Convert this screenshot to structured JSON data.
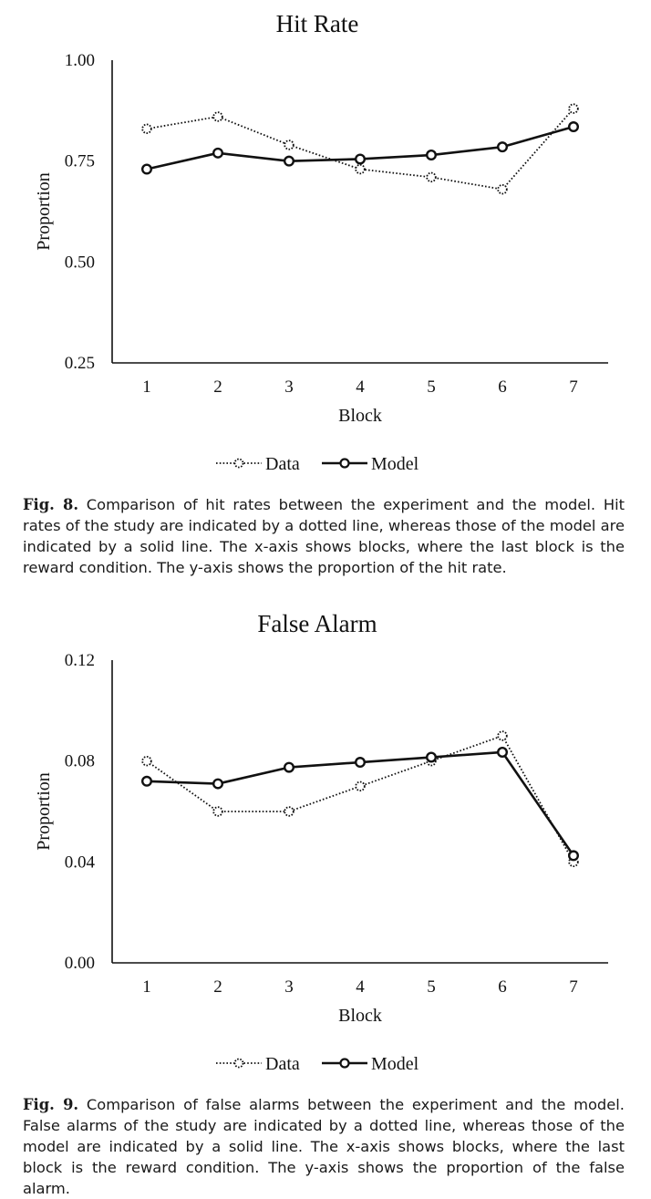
{
  "figures": [
    {
      "caption_label": "Fig. 8.",
      "caption_text": "Comparison of hit rates between the experiment and the model. Hit rates of the study are indicated by a dotted line, whereas those of the model are indicated by a solid line. The x-axis shows blocks, where the last block is the reward condition. The y-axis shows the proportion of the hit rate.",
      "chart_data": {
        "type": "line",
        "title": "Hit Rate",
        "xlabel": "Block",
        "ylabel": "Proportion",
        "categories": [
          "1",
          "2",
          "3",
          "4",
          "5",
          "6",
          "7"
        ],
        "yticks": [
          "0.25",
          "0.50",
          "0.75",
          "1.00"
        ],
        "ylim": [
          0.25,
          1.0
        ],
        "grid": false,
        "legend_position": "bottom",
        "series": [
          {
            "name": "Data",
            "style": "dotted",
            "values": [
              0.83,
              0.86,
              0.79,
              0.73,
              0.71,
              0.68,
              0.88
            ]
          },
          {
            "name": "Model",
            "style": "solid",
            "values": [
              0.73,
              0.77,
              0.75,
              0.755,
              0.765,
              0.785,
              0.835
            ]
          }
        ]
      }
    },
    {
      "caption_label": "Fig. 9.",
      "caption_text": "Comparison of false alarms between the experiment and the model. False alarms of the study are indicated by a dotted line, whereas those of the model are indicated by a solid line. The x-axis shows blocks, where the last block is the reward condition. The y-axis shows the proportion of the false alarm.",
      "chart_data": {
        "type": "line",
        "title": "False Alarm",
        "xlabel": "Block",
        "ylabel": "Proportion",
        "categories": [
          "1",
          "2",
          "3",
          "4",
          "5",
          "6",
          "7"
        ],
        "yticks": [
          "0.00",
          "0.04",
          "0.08",
          "0.12"
        ],
        "ylim": [
          0.0,
          0.12
        ],
        "grid": false,
        "legend_position": "bottom",
        "series": [
          {
            "name": "Data",
            "style": "dotted",
            "values": [
              0.08,
              0.06,
              0.06,
              0.07,
              0.08,
              0.09,
              0.04
            ]
          },
          {
            "name": "Model",
            "style": "solid",
            "values": [
              0.072,
              0.071,
              0.0775,
              0.0795,
              0.0815,
              0.0835,
              0.0425
            ]
          }
        ]
      }
    }
  ],
  "colors": {
    "line": "#111111",
    "text": "#1a1a1a",
    "background": "#ffffff"
  }
}
